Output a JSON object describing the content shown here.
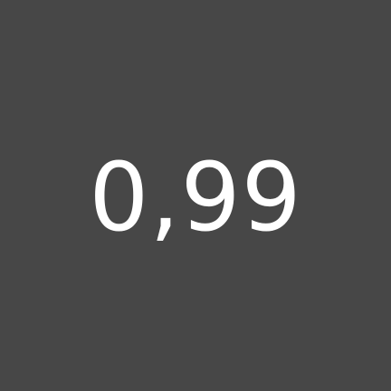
{
  "tile": {
    "value": "0,99",
    "background_color": "#474747",
    "text_color": "#ffffff"
  }
}
